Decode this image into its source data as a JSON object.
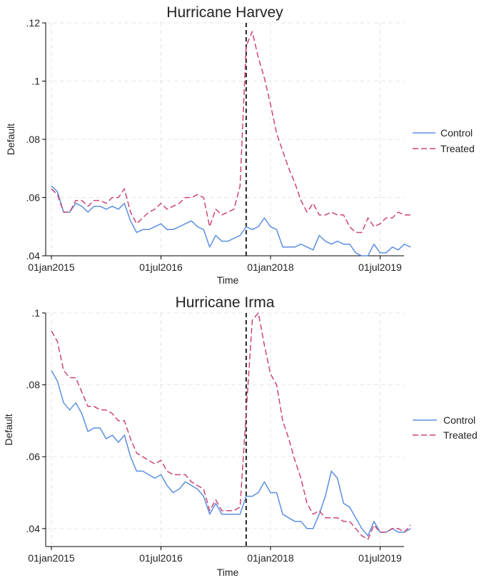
{
  "chart_data": [
    {
      "type": "line",
      "title": "Hurricane Harvey",
      "xlabel": "Time",
      "ylabel": "Default",
      "x_ticks": [
        "01jan2015",
        "01jul2016",
        "01jan2018",
        "01jul2019"
      ],
      "y_ticks": [
        ".04",
        ".06",
        ".08",
        ".1",
        ".12"
      ],
      "x_start": "2015-01",
      "x_end": "2019-10",
      "ylim": [
        0.04,
        0.12
      ],
      "event_line_x": "2017-09",
      "legend_position": "right",
      "grid": true,
      "series": [
        {
          "name": "Control",
          "color": "#5b8fe0",
          "dash": "solid",
          "values": [
            0.064,
            0.062,
            0.055,
            0.055,
            0.058,
            0.057,
            0.055,
            0.057,
            0.057,
            0.056,
            0.057,
            0.056,
            0.058,
            0.052,
            0.048,
            0.049,
            0.049,
            0.05,
            0.051,
            0.049,
            0.049,
            0.05,
            0.051,
            0.052,
            0.05,
            0.049,
            0.043,
            0.047,
            0.045,
            0.045,
            0.046,
            0.047,
            0.05,
            0.049,
            0.05,
            0.053,
            0.05,
            0.049,
            0.043,
            0.043,
            0.043,
            0.044,
            0.043,
            0.042,
            0.047,
            0.045,
            0.044,
            0.045,
            0.044,
            0.044,
            0.041,
            0.04,
            0.04,
            0.044,
            0.041,
            0.041,
            0.043,
            0.042,
            0.044,
            0.043
          ]
        },
        {
          "name": "Treated",
          "color": "#cc4477",
          "dash": "dashed",
          "values": [
            0.063,
            0.061,
            0.055,
            0.055,
            0.059,
            0.059,
            0.057,
            0.059,
            0.059,
            0.058,
            0.06,
            0.06,
            0.063,
            0.055,
            0.051,
            0.053,
            0.055,
            0.056,
            0.058,
            0.056,
            0.057,
            0.058,
            0.06,
            0.06,
            0.061,
            0.06,
            0.05,
            0.056,
            0.054,
            0.055,
            0.056,
            0.064,
            0.112,
            0.117,
            0.108,
            0.101,
            0.092,
            0.082,
            0.076,
            0.07,
            0.065,
            0.059,
            0.055,
            0.058,
            0.054,
            0.054,
            0.055,
            0.054,
            0.054,
            0.05,
            0.048,
            0.048,
            0.053,
            0.05,
            0.051,
            0.053,
            0.053,
            0.055,
            0.054,
            0.054
          ]
        }
      ]
    },
    {
      "type": "line",
      "title": "Hurricane Irma",
      "xlabel": "Time",
      "ylabel": "Default",
      "x_ticks": [
        "01jan2015",
        "01jul2016",
        "01jan2018",
        "01jul2019"
      ],
      "y_ticks": [
        ".04",
        ".06",
        ".08",
        ".1"
      ],
      "x_start": "2015-01",
      "x_end": "2019-10",
      "ylim": [
        0.035,
        0.1
      ],
      "event_line_x": "2017-09",
      "legend_position": "right",
      "grid": true,
      "series": [
        {
          "name": "Control",
          "color": "#5b8fe0",
          "dash": "solid",
          "values": [
            0.084,
            0.081,
            0.075,
            0.073,
            0.075,
            0.072,
            0.067,
            0.068,
            0.068,
            0.065,
            0.066,
            0.064,
            0.066,
            0.06,
            0.056,
            0.056,
            0.055,
            0.054,
            0.055,
            0.052,
            0.05,
            0.051,
            0.053,
            0.052,
            0.051,
            0.049,
            0.044,
            0.047,
            0.044,
            0.044,
            0.044,
            0.044,
            0.049,
            0.049,
            0.05,
            0.053,
            0.05,
            0.05,
            0.044,
            0.043,
            0.042,
            0.042,
            0.04,
            0.04,
            0.044,
            0.049,
            0.056,
            0.054,
            0.047,
            0.046,
            0.043,
            0.04,
            0.038,
            0.042,
            0.039,
            0.039,
            0.04,
            0.039,
            0.039,
            0.04
          ]
        },
        {
          "name": "Treated",
          "color": "#cc4477",
          "dash": "dashed",
          "values": [
            0.095,
            0.092,
            0.084,
            0.082,
            0.082,
            0.078,
            0.074,
            0.074,
            0.073,
            0.073,
            0.072,
            0.07,
            0.07,
            0.065,
            0.061,
            0.06,
            0.059,
            0.058,
            0.059,
            0.056,
            0.055,
            0.055,
            0.055,
            0.053,
            0.052,
            0.051,
            0.045,
            0.048,
            0.045,
            0.045,
            0.045,
            0.046,
            0.072,
            0.098,
            0.1,
            0.091,
            0.083,
            0.08,
            0.07,
            0.065,
            0.059,
            0.054,
            0.047,
            0.044,
            0.045,
            0.043,
            0.043,
            0.043,
            0.042,
            0.042,
            0.04,
            0.038,
            0.037,
            0.041,
            0.039,
            0.039,
            0.04,
            0.04,
            0.039,
            0.041
          ]
        }
      ]
    }
  ]
}
